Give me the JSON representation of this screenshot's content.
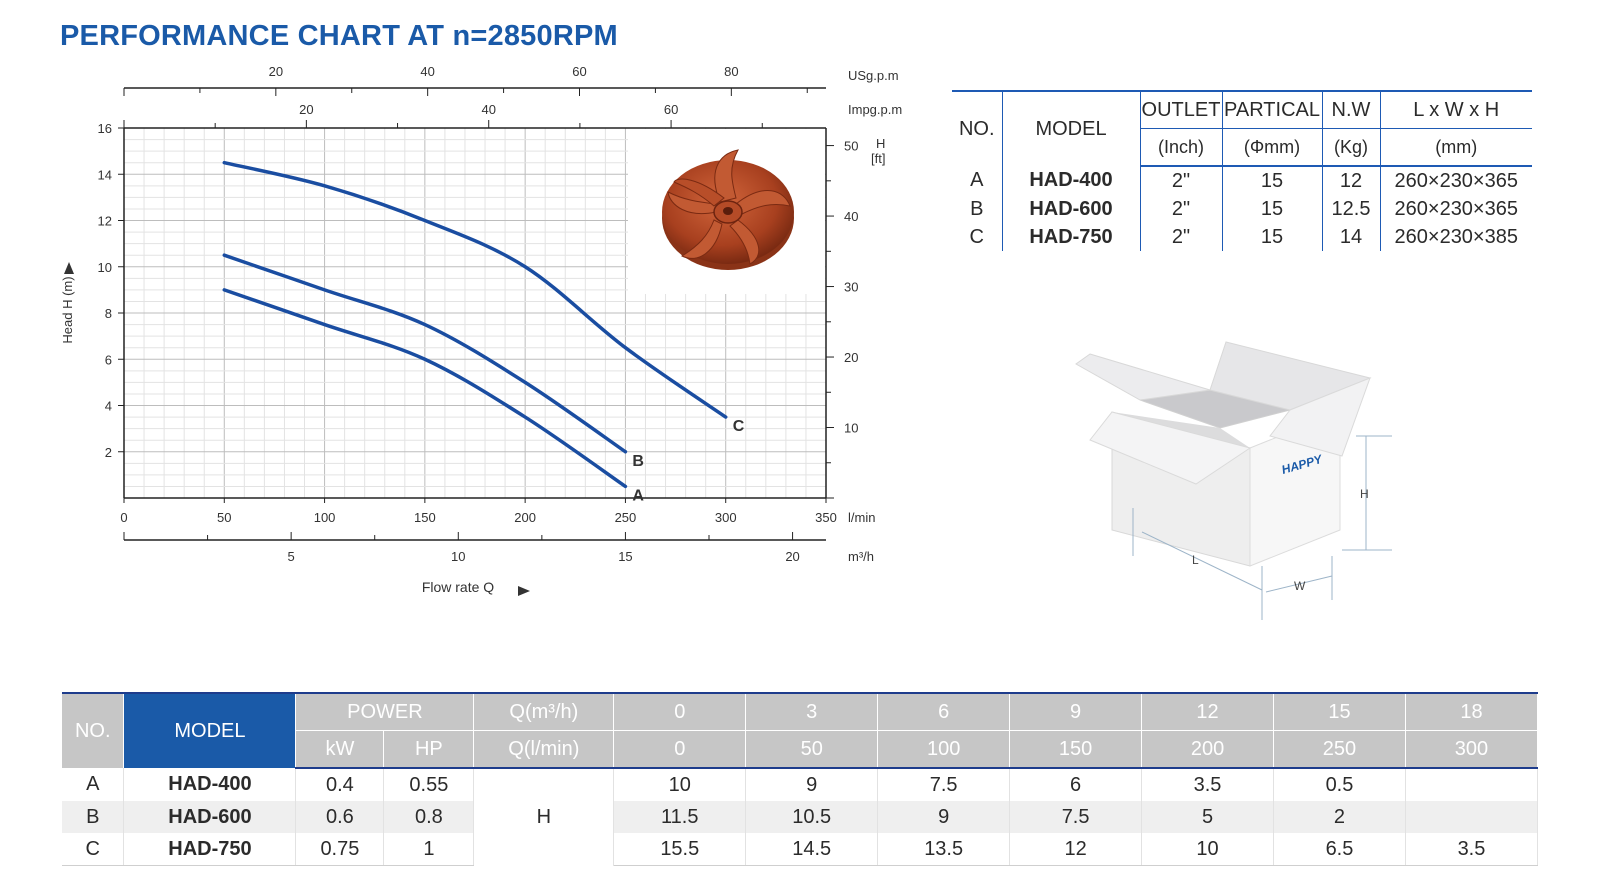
{
  "title": "PERFORMANCE CHART AT n=2850RPM",
  "chart_data": {
    "type": "line",
    "x_unit": "l/min",
    "x_ticks": [
      0,
      50,
      100,
      150,
      200,
      250,
      300,
      350
    ],
    "xlim": [
      0,
      350
    ],
    "ylabel": "Head H (m)",
    "y_ticks": [
      2,
      4,
      6,
      8,
      10,
      12,
      14,
      16
    ],
    "ylim": [
      0,
      16
    ],
    "xlabel": "Flow rate Q",
    "axis_top_usgpm": {
      "unit": "USg.p.m",
      "ticks": [
        20,
        40,
        60,
        80
      ]
    },
    "axis_top_impgpm": {
      "unit": "Impg.p.m",
      "ticks": [
        20,
        40,
        60
      ]
    },
    "axis_right_ft": {
      "unit": "H\n[ft]",
      "unit_line1": "H",
      "unit_line2": "[ft]",
      "ticks": [
        10,
        20,
        30,
        40,
        50
      ]
    },
    "axis_bottom_m3h": {
      "unit": "m³/h",
      "ticks": [
        5,
        10,
        15,
        20
      ]
    },
    "grid": true,
    "series": [
      {
        "name": "A",
        "x": [
          50,
          100,
          150,
          200,
          250
        ],
        "y": [
          9,
          7.5,
          6,
          3.5,
          0.5
        ],
        "color": "#1a4da1"
      },
      {
        "name": "B",
        "x": [
          50,
          100,
          150,
          200,
          250
        ],
        "y": [
          10.5,
          9,
          7.5,
          5,
          2
        ],
        "color": "#1a4da1"
      },
      {
        "name": "C",
        "x": [
          50,
          100,
          150,
          200,
          250,
          300
        ],
        "y": [
          14.5,
          13.5,
          12,
          10,
          6.5,
          3.5
        ],
        "color": "#1a4da1"
      }
    ]
  },
  "spec_table": {
    "headers": {
      "no": "NO.",
      "model": "MODEL",
      "outlet": "OUTLET",
      "outlet_unit": "(Inch)",
      "partical": "PARTICAL",
      "partical_unit": "(Φmm)",
      "nw": "N.W",
      "nw_unit": "(Kg)",
      "dims": "L x W x H",
      "dims_unit": "(mm)"
    },
    "rows": [
      {
        "no": "A",
        "model": "HAD-400",
        "outlet": "2\"",
        "partical": "15",
        "nw": "12",
        "dims": "260×230×365"
      },
      {
        "no": "B",
        "model": "HAD-600",
        "outlet": "2\"",
        "partical": "15",
        "nw": "12.5",
        "dims": "260×230×365"
      },
      {
        "no": "C",
        "model": "HAD-750",
        "outlet": "2\"",
        "partical": "15",
        "nw": "14",
        "dims": "260×230×385"
      }
    ]
  },
  "box_diagram": {
    "brand": "HAPPY",
    "label_l": "L",
    "label_w": "W",
    "label_h": "H"
  },
  "perf_table": {
    "headers": {
      "no": "NO.",
      "model": "MODEL",
      "power": "POWER",
      "kw": "kW",
      "hp": "HP",
      "q_m3h": "Q(m³/h)",
      "q_lmin": "Q(l/min)"
    },
    "q_m3h": [
      "0",
      "3",
      "6",
      "9",
      "12",
      "15",
      "18"
    ],
    "q_lmin": [
      "0",
      "50",
      "100",
      "150",
      "200",
      "250",
      "300"
    ],
    "h_label": "H",
    "rows": [
      {
        "no": "A",
        "model": "HAD-400",
        "kw": "0.4",
        "hp": "0.55",
        "values": [
          "10",
          "9",
          "7.5",
          "6",
          "3.5",
          "0.5",
          ""
        ]
      },
      {
        "no": "B",
        "model": "HAD-600",
        "kw": "0.6",
        "hp": "0.8",
        "values": [
          "11.5",
          "10.5",
          "9",
          "7.5",
          "5",
          "2",
          ""
        ]
      },
      {
        "no": "C",
        "model": "HAD-750",
        "kw": "0.75",
        "hp": "1",
        "values": [
          "15.5",
          "14.5",
          "13.5",
          "12",
          "10",
          "6.5",
          "3.5"
        ]
      }
    ]
  }
}
